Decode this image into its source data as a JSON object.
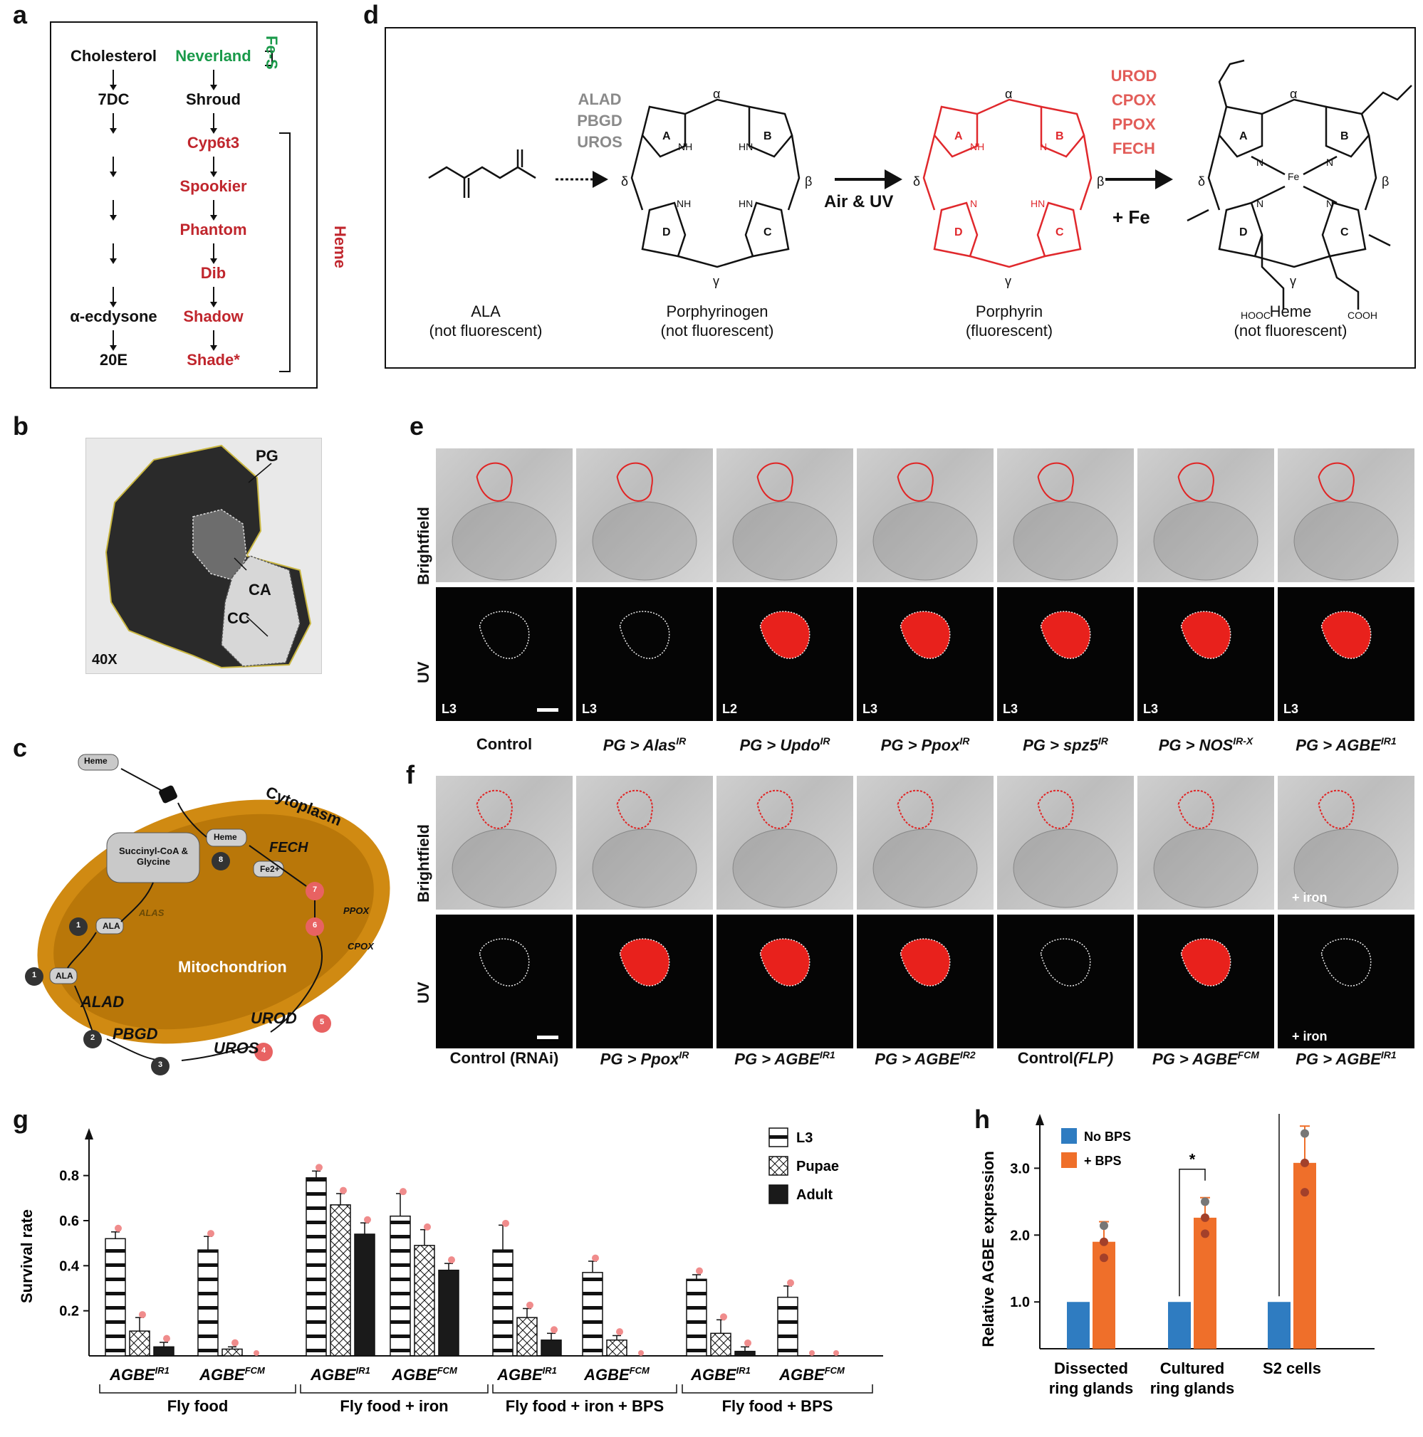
{
  "panels": {
    "a": "a",
    "b": "b",
    "c": "c",
    "d": "d",
    "e": "e",
    "f": "f",
    "g": "g",
    "h": "h"
  },
  "panel_a": {
    "left_col": [
      "Cholesterol",
      "7DC",
      "",
      "",
      "",
      "",
      "α-ecdysone",
      "20E"
    ],
    "right_col": [
      "Neverland",
      "Shroud",
      "Cyp6t3",
      "Spookier",
      "Phantom",
      "Dib",
      "Shadow",
      "Shade*"
    ],
    "bracket_fes": "Fe-S",
    "bracket_heme": "Heme",
    "colors": {
      "green": "#1a9a4a",
      "red": "#c0262d",
      "black": "#111111"
    }
  },
  "panel_b": {
    "labels": {
      "pg": "PG",
      "ca": "CA",
      "cc": "CC",
      "mag": "40X"
    }
  },
  "panel_c": {
    "heme_out": "Heme",
    "cytoplasm": "Cytoplasm",
    "succinyl": "Succinyl-CoA & Glycine",
    "heme_in": "Heme",
    "fe": "Fe2+",
    "fech": "FECH",
    "alas": "ALAS",
    "ala_in": "ALA",
    "ala_out": "ALA",
    "ppox": "PPOX",
    "cpox": "CPOX",
    "mito": "Mitochondrion",
    "alad": "ALAD",
    "pbgd": "PBGD",
    "uros": "UROS",
    "urod": "UROD",
    "steps": [
      "1",
      "1",
      "2",
      "3",
      "4",
      "5",
      "6",
      "7",
      "8"
    ]
  },
  "panel_d": {
    "enzymes_1": [
      "ALAD",
      "PBGD",
      "UROS"
    ],
    "enzymes_2": [
      "UROD",
      "CPOX",
      "PPOX",
      "FECH"
    ],
    "arrow_mid": "Air & UV",
    "arrow_fe": "+ Fe",
    "compounds": [
      {
        "name": "ALA",
        "note": "(not fluorescent)"
      },
      {
        "name": "Porphyrinogen",
        "note": "(not fluorescent)"
      },
      {
        "name": "Porphyrin",
        "note": "(fluorescent)"
      },
      {
        "name": "Heme",
        "note": "(not fluorescent)"
      }
    ],
    "ring_letters": [
      "A",
      "B",
      "C",
      "D"
    ],
    "greek": [
      "α",
      "β",
      "γ",
      "δ"
    ],
    "atoms": {
      "nh": "NH",
      "hn": "HN",
      "n": "N",
      "fe": "Fe",
      "hooc": "HOOC",
      "cooh": "COOH"
    }
  },
  "panel_e": {
    "row_bf": "Brightfield",
    "row_uv": "UV",
    "stages": [
      "L3",
      "L3",
      "L2",
      "L3",
      "L3",
      "L3",
      "L3"
    ],
    "caption_control": "Control",
    "captions": [
      {
        "base": "PG > Alas",
        "sup": "IR"
      },
      {
        "base": "PG > Updo",
        "sup": "IR"
      },
      {
        "base": "PG > Ppox",
        "sup": "IR"
      },
      {
        "base": "PG > spz5",
        "sup": "IR"
      },
      {
        "base": "PG > NOS",
        "sup": "IR-X"
      },
      {
        "base": "PG > AGBE",
        "sup": "IR1"
      }
    ]
  },
  "panel_f": {
    "row_bf": "Brightfield",
    "row_uv": "UV",
    "iron": "+ iron",
    "iron2": "+ iron",
    "caption_control": "Control (RNAi)",
    "caption_flp_base": "Control",
    "caption_flp_it": "(FLP)",
    "captions": [
      {
        "base": "PG > Ppox",
        "sup": "IR"
      },
      {
        "base": "PG > AGBE",
        "sup": "IR1"
      },
      {
        "base": "PG > AGBE",
        "sup": "IR2"
      },
      {
        "base": "PG > AGBE",
        "sup": "FCM"
      },
      {
        "base": "PG > AGBE",
        "sup": "IR1"
      }
    ]
  },
  "chart_data": [
    {
      "type": "bar",
      "panel": "g",
      "ylabel": "Survival rate",
      "ylim": [
        0,
        0.9
      ],
      "yticks": [
        "0.2",
        "0.4",
        "0.6",
        "0.8"
      ],
      "legend": [
        "L3",
        "Pupae",
        "Adult"
      ],
      "categories": [
        "AGBE IR1",
        "AGBE FCM",
        "AGBE IR1",
        "AGBE FCM",
        "AGBE IR1",
        "AGBE FCM",
        "AGBE IR1",
        "AGBE FCM"
      ],
      "groups": [
        "Fly food",
        "Fly food + iron",
        "Fly food + iron + BPS",
        "Fly food + BPS"
      ],
      "series": [
        {
          "name": "L3",
          "values": [
            0.52,
            0.47,
            0.79,
            0.62,
            0.47,
            0.37,
            0.34,
            0.26
          ],
          "errors": [
            0.03,
            0.06,
            0.03,
            0.1,
            0.11,
            0.05,
            0.02,
            0.05
          ]
        },
        {
          "name": "Pupae",
          "values": [
            0.11,
            0.03,
            0.67,
            0.49,
            0.17,
            0.07,
            0.1,
            0.0
          ],
          "errors": [
            0.06,
            0.01,
            0.05,
            0.07,
            0.04,
            0.02,
            0.06,
            0.0
          ]
        },
        {
          "name": "Adult",
          "values": [
            0.04,
            0.0,
            0.54,
            0.38,
            0.07,
            0.0,
            0.02,
            0.0
          ],
          "errors": [
            0.02,
            0.0,
            0.05,
            0.03,
            0.03,
            0.0,
            0.02,
            0.0
          ]
        }
      ],
      "label_base": "AGBE",
      "label_sups": [
        "IR1",
        "FCM",
        "IR1",
        "FCM",
        "IR1",
        "FCM",
        "IR1",
        "FCM"
      ]
    },
    {
      "type": "bar",
      "panel": "h",
      "ylabel": "Relative AGBE expression",
      "ylim": [
        0.3,
        3.6
      ],
      "yticks": [
        "1.0",
        "2.0",
        "3.0"
      ],
      "categories": [
        "Dissected ring glands",
        "Cultured ring glands",
        "S2 cells"
      ],
      "series": [
        {
          "name": "No BPS",
          "values": [
            1.0,
            1.0,
            1.0
          ],
          "color": "#2f7cc1"
        },
        {
          "name": "+ BPS",
          "values": [
            1.9,
            2.26,
            3.08
          ],
          "errors": [
            0.3,
            0.3,
            0.55
          ],
          "color": "#ef6f2a"
        }
      ],
      "significance": [
        "",
        "*",
        "*"
      ]
    }
  ],
  "panel_h": {
    "cat_lines": [
      [
        "Dissected",
        "ring glands"
      ],
      [
        "Cultured",
        "ring glands"
      ],
      [
        "S2 cells",
        ""
      ]
    ]
  },
  "panel_g": {
    "group_labels": [
      "Fly food",
      "Fly food + iron",
      "Fly food + iron + BPS",
      "Fly food + BPS"
    ]
  }
}
